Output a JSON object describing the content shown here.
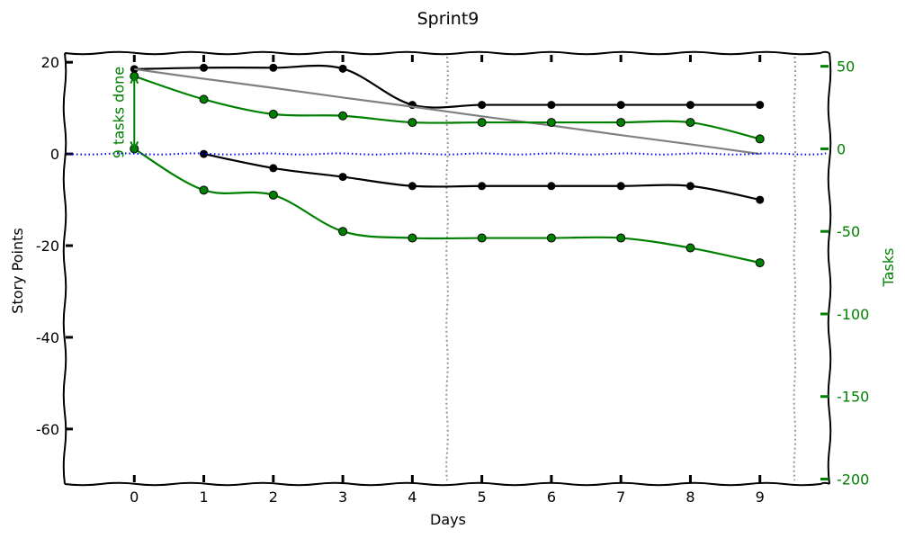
{
  "chart_data": {
    "type": "line",
    "title": "Sprint9",
    "xlabel": "Days",
    "ylabel": "Story Points",
    "y2label": "Tasks",
    "xlim": [
      -1,
      10
    ],
    "ylim": [
      -72,
      22
    ],
    "y2lim": [
      -203,
      58
    ],
    "xticks": [
      0,
      1,
      2,
      3,
      4,
      5,
      6,
      7,
      8,
      9
    ],
    "yticks": [
      20,
      0,
      -20,
      -40,
      -60
    ],
    "y2ticks": [
      50,
      0,
      -50,
      -100,
      -150,
      -200
    ],
    "grid": false,
    "legend": "none",
    "colors": {
      "points": "#000000",
      "tasks": "#008000",
      "ideal": "#808080",
      "zero": "#0000ff",
      "sprint_end": "#999999"
    },
    "x": [
      0,
      1,
      2,
      3,
      4,
      5,
      6,
      7,
      8,
      9
    ],
    "series": [
      {
        "axis": "left",
        "color": "#000000",
        "style": "solid",
        "markers": true,
        "values": [
          18.5,
          18.8,
          18.8,
          18.6,
          10.7,
          10.7,
          10.7,
          10.7,
          10.7,
          10.7
        ]
      },
      {
        "axis": "left",
        "color": "#000000",
        "style": "solid",
        "markers": true,
        "values": [
          null,
          0,
          -3.1,
          -5,
          -7,
          -7,
          -7,
          -7,
          -7,
          -10
        ]
      },
      {
        "axis": "left",
        "color": "#808080",
        "style": "solid",
        "markers": false,
        "values": [
          18.5,
          16.4,
          14.4,
          12.3,
          10.3,
          8.2,
          6.2,
          4.1,
          2.1,
          0
        ]
      },
      {
        "axis": "right",
        "color": "#008000",
        "style": "solid",
        "markers": true,
        "values": [
          44,
          30,
          21,
          20,
          16,
          16,
          16,
          16,
          16,
          6
        ]
      },
      {
        "axis": "right",
        "color": "#008000",
        "style": "solid",
        "markers": true,
        "values": [
          0,
          -25,
          -28,
          -50,
          -54,
          -54,
          -54,
          -54,
          -60,
          -69
        ]
      },
      {
        "axis": "left",
        "color": "#0000ff",
        "style": "dotted",
        "markers": false,
        "values": [
          0,
          0,
          0,
          0,
          0,
          0,
          0,
          0,
          0,
          0
        ]
      }
    ],
    "vlines": [
      4.5,
      9.5
    ],
    "annotations": [
      {
        "text": "9 tasks done",
        "x": 0,
        "y1": 0,
        "y2": 44,
        "axis": "right",
        "color": "#008000"
      }
    ]
  }
}
